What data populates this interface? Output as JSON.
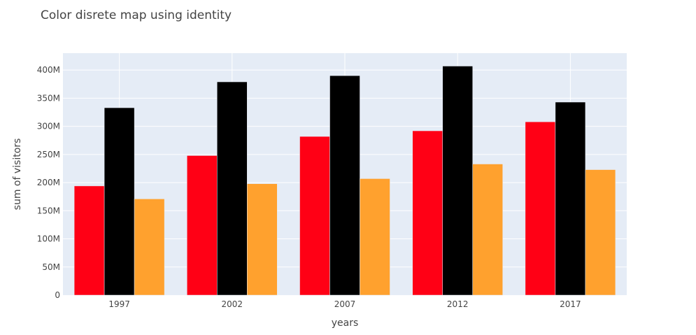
{
  "chart_data": {
    "type": "bar",
    "title": "Color disrete map using identity",
    "xlabel": "years",
    "ylabel": "sum of visitors",
    "categories": [
      "1997",
      "2002",
      "2007",
      "2012",
      "2017"
    ],
    "ylim": [
      0,
      430000000
    ],
    "yticks": [
      0,
      50000000,
      100000000,
      150000000,
      200000000,
      250000000,
      300000000,
      350000000,
      400000000
    ],
    "ytick_labels": [
      "0",
      "50M",
      "100M",
      "150M",
      "200M",
      "250M",
      "300M",
      "350M",
      "400M"
    ],
    "grid": true,
    "plot_background": "#e5ecf6",
    "series": [
      {
        "name": "red",
        "color": "#ff0015",
        "values": [
          194000000,
          248000000,
          282000000,
          292000000,
          308000000
        ]
      },
      {
        "name": "black",
        "color": "#000000",
        "values": [
          333000000,
          379000000,
          390000000,
          407000000,
          343000000
        ]
      },
      {
        "name": "orange",
        "color": "#ffa12e",
        "values": [
          171000000,
          198000000,
          207000000,
          233000000,
          223000000
        ]
      }
    ]
  }
}
